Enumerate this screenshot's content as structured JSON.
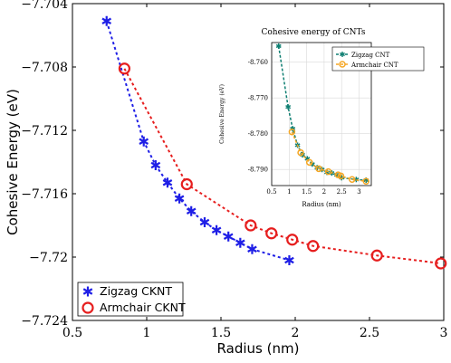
{
  "colors": {
    "zigzag_main": "#1f1fe6",
    "armchair_main": "#e61e1e",
    "zigzag_inset": "#0f7f72",
    "armchair_inset": "#f5a623"
  },
  "chart_data": [
    {
      "id": "main",
      "type": "line",
      "title": "",
      "xlabel": "Radius (nm)",
      "ylabel": "Cohesive Energy (eV)",
      "xlim": [
        0.5,
        3
      ],
      "ylim": [
        -7.724,
        -7.704
      ],
      "xticks": [
        "0.5",
        "1",
        "1.5",
        "2",
        "2.5",
        "3"
      ],
      "yticks": [
        "−7.704",
        "−7.708",
        "−7.712",
        "−7.716",
        "−7.72",
        "−7.724"
      ],
      "legend": "bottom-left",
      "grid": false,
      "series": [
        {
          "name": "Zigzag CKNT",
          "marker": "asterisk",
          "x": [
            0.73,
            0.98,
            1.06,
            1.14,
            1.22,
            1.3,
            1.39,
            1.47,
            1.55,
            1.63,
            1.71,
            1.96
          ],
          "y": [
            -7.7051,
            -7.7127,
            -7.7142,
            -7.7153,
            -7.7163,
            -7.7171,
            -7.7178,
            -7.7183,
            -7.7187,
            -7.7191,
            -7.7195,
            -7.7202
          ]
        },
        {
          "name": "Armchair CKNT",
          "marker": "circle",
          "x": [
            0.85,
            1.27,
            1.7,
            1.84,
            1.98,
            2.12,
            2.55,
            2.98
          ],
          "y": [
            -7.7081,
            -7.7154,
            -7.718,
            -7.7185,
            -7.7189,
            -7.7193,
            -7.7199,
            -7.7204
          ]
        }
      ]
    },
    {
      "id": "inset",
      "type": "line",
      "title": "Cohesive energy of CNTs",
      "xlabel": "Radius (nm)",
      "ylabel": "Cohesive Energy (eV)",
      "xlim": [
        0.5,
        3.35
      ],
      "ylim": [
        -8.7945,
        -8.7545
      ],
      "xticks": [
        "0.5",
        "1",
        "1.5",
        "2",
        "2.5",
        "3"
      ],
      "yticks": [
        "-8.760",
        "-8.770",
        "-8.780",
        "-8.790"
      ],
      "legend": "top-right",
      "grid": true,
      "series": [
        {
          "name": "Zigzag CNT",
          "marker": "asterisk",
          "x": [
            0.7,
            0.97,
            1.1,
            1.24,
            1.38,
            1.52,
            1.66,
            1.8,
            1.94,
            2.08,
            2.22,
            2.36,
            2.5,
            2.92,
            3.2
          ],
          "y": [
            -8.7555,
            -8.7725,
            -8.7786,
            -8.7832,
            -8.7859,
            -8.787,
            -8.7885,
            -8.7895,
            -8.79,
            -8.7908,
            -8.791,
            -8.7915,
            -8.7923,
            -8.7928,
            -8.793
          ]
        },
        {
          "name": "Armchair CNT",
          "marker": "circle",
          "x": [
            1.08,
            1.33,
            1.58,
            1.85,
            2.12,
            2.4,
            2.48,
            2.8,
            3.2
          ],
          "y": [
            -8.7795,
            -8.7853,
            -8.788,
            -8.7898,
            -8.7906,
            -8.7915,
            -8.7918,
            -8.7928,
            -8.7933
          ]
        }
      ]
    }
  ]
}
